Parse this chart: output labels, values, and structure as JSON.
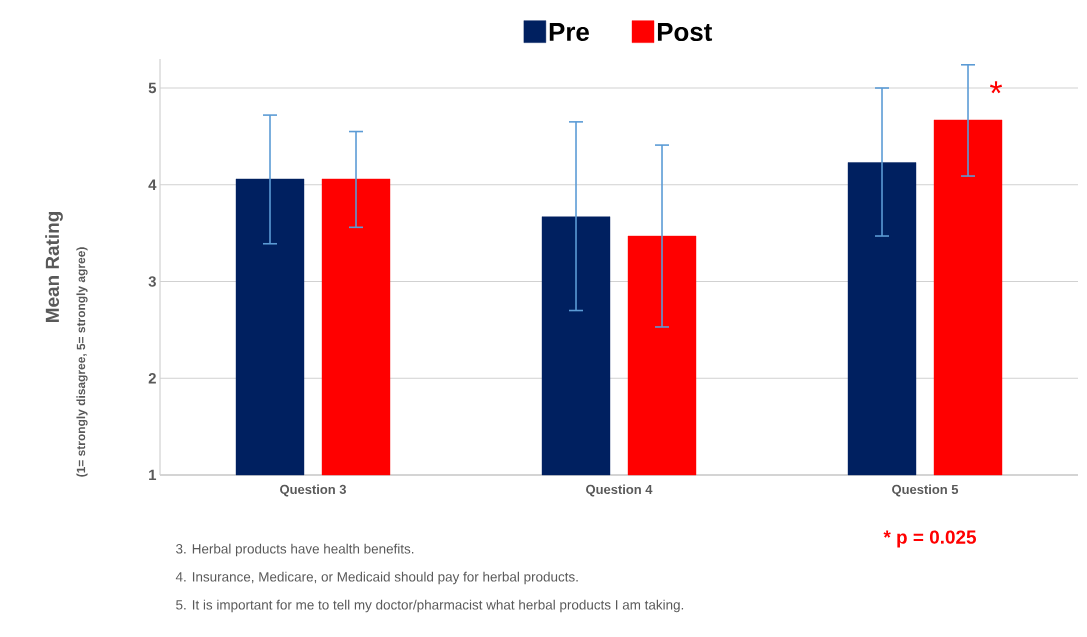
{
  "chart_data": {
    "type": "bar",
    "ylabel": "Mean Rating",
    "categories": [
      "Question 3",
      "Question 4",
      "Question 5"
    ],
    "series": [
      {
        "name": "Pre",
        "color": "#002060",
        "values": [
          4.06,
          3.67,
          4.23
        ],
        "errors": [
          [
            3.39,
            4.72
          ],
          [
            2.7,
            4.65
          ],
          [
            3.47,
            5.0
          ]
        ]
      },
      {
        "name": "Post",
        "color": "#ff0000",
        "values": [
          4.06,
          3.47,
          4.67
        ],
        "errors": [
          [
            3.56,
            4.55
          ],
          [
            2.53,
            4.41
          ],
          [
            4.09,
            5.24
          ]
        ]
      }
    ],
    "ylim": [
      1,
      5.3
    ],
    "yticks": [
      1,
      2,
      3,
      4,
      5
    ],
    "grid": "y",
    "legend": "top",
    "annotations": [
      "(1= strongly disagree, 5= strongly agree)",
      "*",
      "* p = 0.025",
      "3. Herbal products have health benefits.",
      "4. Insurance, Medicare, or Medicaid should pay for herbal products.",
      "5. It is important for me to tell my doctor/pharmacist what herbal products I am taking."
    ]
  }
}
